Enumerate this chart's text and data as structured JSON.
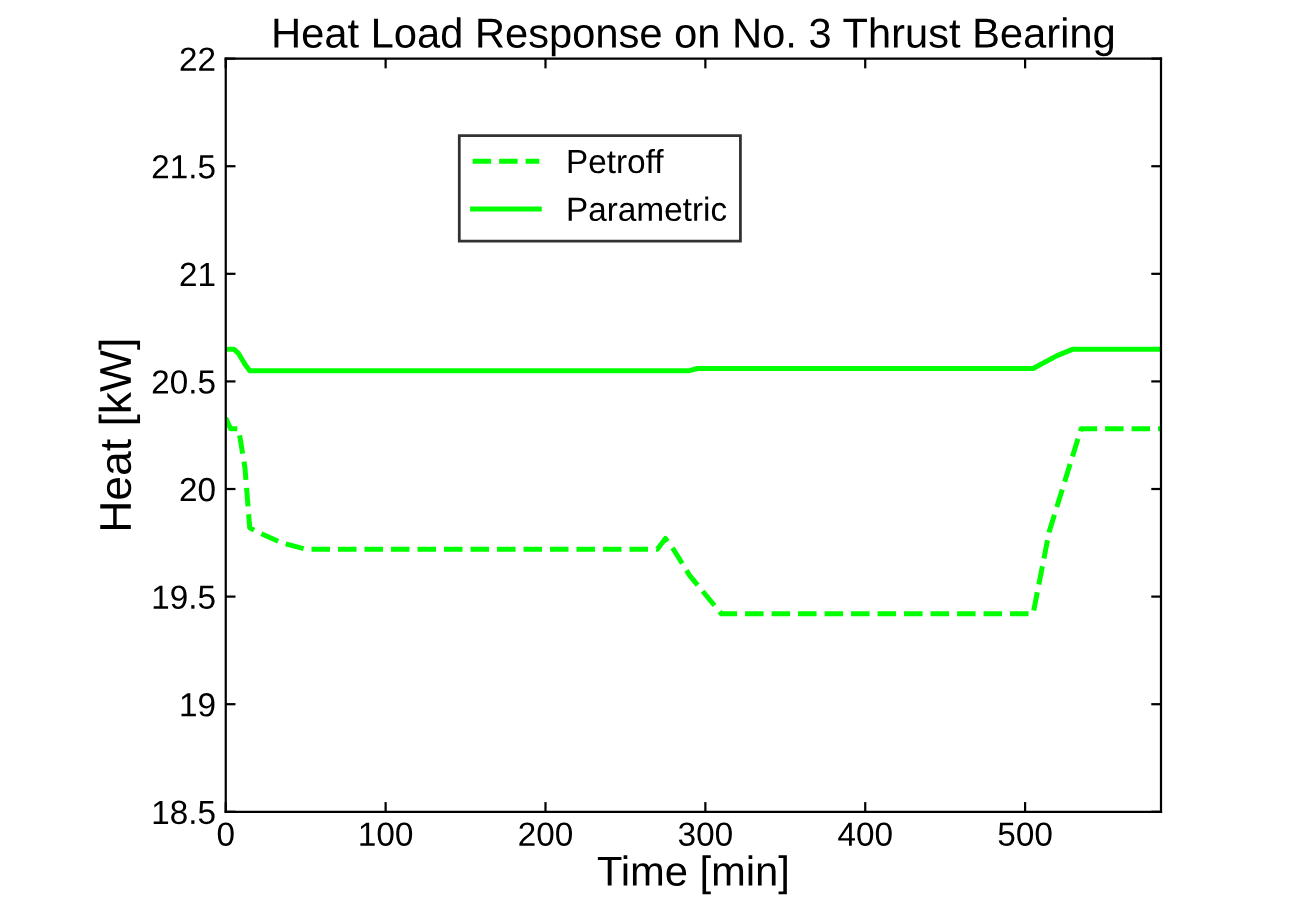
{
  "chart_data": {
    "type": "line",
    "title": "Heat Load Response on No. 3 Thrust Bearing",
    "xlabel": "Time [min]",
    "ylabel": "Heat [kW]",
    "series": [
      {
        "name": "Petroff",
        "color": "#00ff00",
        "line_style": "dashed",
        "x": [
          0,
          3,
          8,
          12,
          15,
          20,
          35,
          50,
          270,
          275,
          280,
          290,
          310,
          505,
          515,
          535,
          585
        ],
        "values": [
          20.33,
          20.28,
          20.28,
          20.1,
          19.82,
          19.8,
          19.75,
          19.72,
          19.72,
          19.77,
          19.72,
          19.6,
          19.42,
          19.42,
          19.8,
          20.28,
          20.28
        ]
      },
      {
        "name": "Parametric",
        "color": "#00ff00",
        "line_style": "solid",
        "x": [
          0,
          5,
          8,
          12,
          15,
          290,
          295,
          505,
          520,
          530,
          585
        ],
        "values": [
          20.65,
          20.65,
          20.63,
          20.58,
          20.55,
          20.55,
          20.56,
          20.56,
          20.62,
          20.65,
          20.65
        ]
      }
    ],
    "xlim": [
      0,
      585
    ],
    "ylim": [
      18.5,
      22
    ],
    "xticks": [
      0,
      100,
      200,
      300,
      400,
      500
    ],
    "yticks": [
      18.5,
      19,
      19.5,
      20,
      20.5,
      21,
      21.5,
      22
    ],
    "grid": false,
    "legend": "top"
  }
}
